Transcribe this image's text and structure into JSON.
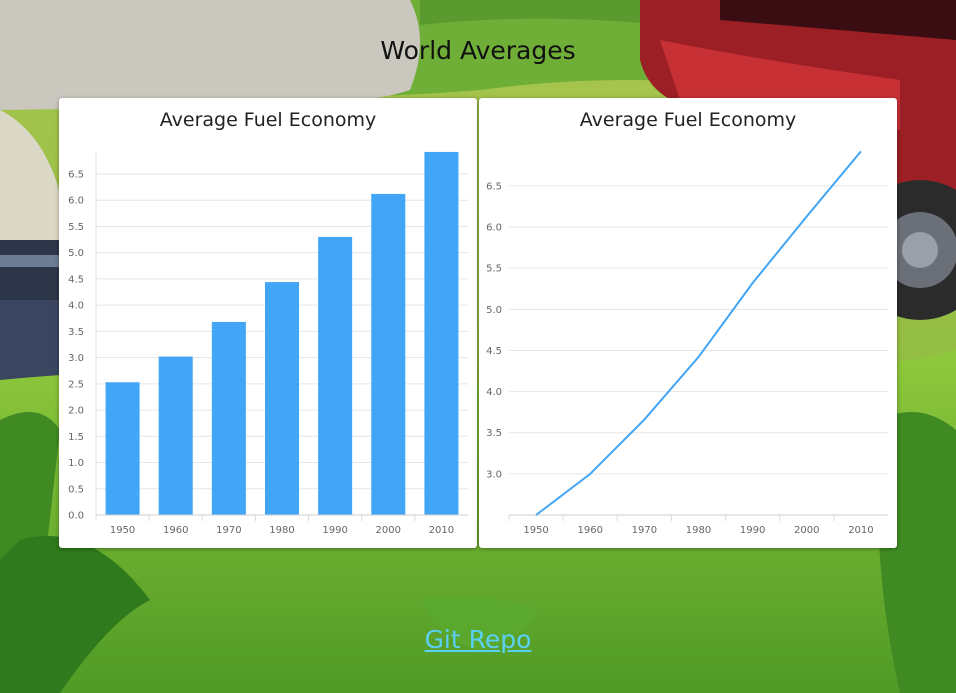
{
  "page": {
    "title": "World Averages",
    "link_label": "Git Repo"
  },
  "colors": {
    "bar": "#42a5f5",
    "line": "#42a5f5",
    "grid": "#e6e6e6",
    "card": "#ffffff",
    "link": "#5bd0f4"
  },
  "chart_data": [
    {
      "type": "bar",
      "title": "Average Fuel Economy",
      "categories": [
        "1950",
        "1960",
        "1970",
        "1980",
        "1990",
        "2000",
        "2010"
      ],
      "values": [
        2.53,
        3.02,
        3.68,
        4.44,
        5.3,
        6.12,
        6.92
      ],
      "ylim": [
        0,
        6.9
      ],
      "yticks": [
        "0.0",
        "0.5",
        "1.0",
        "1.5",
        "2.0",
        "2.5",
        "3.0",
        "3.5",
        "4.0",
        "4.5",
        "5.0",
        "5.5",
        "6.0",
        "6.5"
      ],
      "grid": true,
      "legend": "none"
    },
    {
      "type": "line",
      "title": "Average Fuel Economy",
      "categories": [
        "1950",
        "1960",
        "1970",
        "1980",
        "1990",
        "2000",
        "2010"
      ],
      "values": [
        2.5,
        3.0,
        3.66,
        4.42,
        5.32,
        6.13,
        6.92
      ],
      "ylim": [
        2.5,
        6.9
      ],
      "yticks": [
        "3.0",
        "3.5",
        "4.0",
        "4.5",
        "5.0",
        "5.5",
        "6.0",
        "6.5"
      ],
      "grid": true,
      "legend": "none"
    }
  ]
}
